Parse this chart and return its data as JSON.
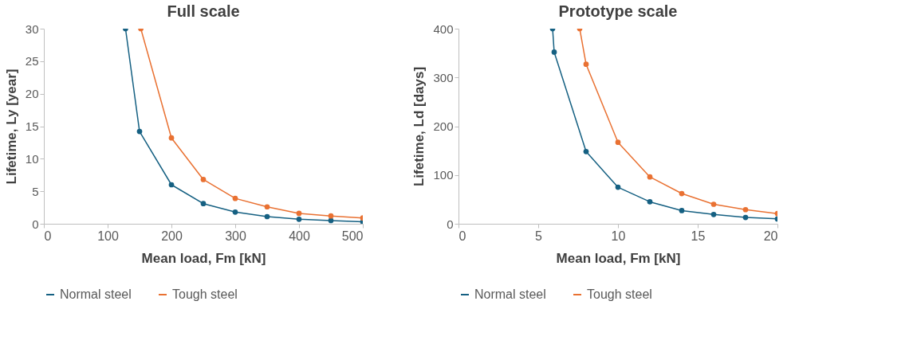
{
  "chart_data": [
    {
      "type": "line",
      "title": "Full scale",
      "xlabel": "Mean load, Fm [kN]",
      "ylabel": "Lifetime, Ly [year]",
      "xlim": [
        0,
        500
      ],
      "xticks": [
        0,
        100,
        200,
        300,
        400,
        500
      ],
      "ylim": [
        0,
        30
      ],
      "yticks": [
        0,
        5,
        10,
        15,
        20,
        25,
        30
      ],
      "grid": false,
      "legend": "bottom",
      "marker": "circle",
      "line_style": "solid",
      "series": [
        {
          "name": "Normal steel",
          "color": "#156082",
          "x": [
            128,
            150,
            200,
            250,
            300,
            350,
            400,
            450,
            500
          ],
          "values": [
            30,
            14.2,
            6.0,
            3.1,
            1.8,
            1.1,
            0.7,
            0.5,
            0.3
          ]
        },
        {
          "name": "Tough steel",
          "color": "#e97132",
          "x": [
            152,
            200,
            250,
            300,
            350,
            400,
            450,
            500
          ],
          "values": [
            30,
            13.2,
            6.8,
            3.9,
            2.6,
            1.6,
            1.2,
            0.9
          ]
        }
      ]
    },
    {
      "type": "line",
      "title": "Prototype scale",
      "xlabel": "Mean load, Fm [kN]",
      "ylabel": "Lifetime, Ld [days]",
      "xlim": [
        0,
        20
      ],
      "xticks": [
        0,
        5,
        10,
        15,
        20
      ],
      "ylim": [
        0,
        400
      ],
      "yticks": [
        0,
        100,
        200,
        300,
        400
      ],
      "grid": false,
      "legend": "bottom",
      "marker": "circle",
      "line_style": "solid",
      "series": [
        {
          "name": "Normal steel",
          "color": "#156082",
          "x": [
            5.9,
            6,
            8,
            10,
            12,
            14,
            16,
            18,
            20
          ],
          "values": [
            400,
            352,
            148,
            75,
            45,
            27,
            19,
            13,
            10
          ]
        },
        {
          "name": "Tough steel",
          "color": "#e97132",
          "x": [
            7.6,
            8,
            10,
            12,
            14,
            16,
            18,
            20
          ],
          "values": [
            400,
            327,
            167,
            96,
            62,
            40,
            29,
            21
          ]
        }
      ]
    }
  ]
}
